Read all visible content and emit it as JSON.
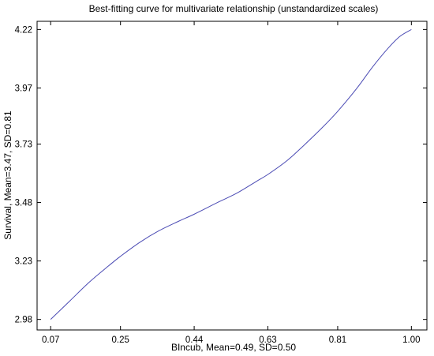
{
  "chart_data": {
    "type": "line",
    "title": "Best-fitting curve for multivariate relationship (unstandardized scales)",
    "xlabel": "BIncub, Mean=0.49, SD=0.50",
    "ylabel": "Survival, Mean=3.47, SD=0.81",
    "xlim": [
      0.035,
      1.04
    ],
    "ylim": [
      2.935,
      4.255
    ],
    "x_ticks": [
      "0.07",
      "0.25",
      "0.44",
      "0.63",
      "0.81",
      "1.00"
    ],
    "y_ticks": [
      "2.98",
      "3.23",
      "3.48",
      "3.73",
      "3.97",
      "4.22"
    ],
    "grid": false,
    "line_color": "#4b4bb4",
    "series": [
      {
        "x": [
          0.07,
          0.12,
          0.17,
          0.22,
          0.25,
          0.3,
          0.35,
          0.4,
          0.44,
          0.5,
          0.55,
          0.6,
          0.63,
          0.68,
          0.72,
          0.77,
          0.81,
          0.86,
          0.9,
          0.94,
          0.97,
          1.0
        ],
        "y": [
          2.98,
          3.06,
          3.14,
          3.21,
          3.25,
          3.31,
          3.36,
          3.4,
          3.43,
          3.48,
          3.52,
          3.57,
          3.6,
          3.66,
          3.72,
          3.8,
          3.87,
          3.97,
          4.06,
          4.14,
          4.19,
          4.22
        ]
      }
    ]
  }
}
